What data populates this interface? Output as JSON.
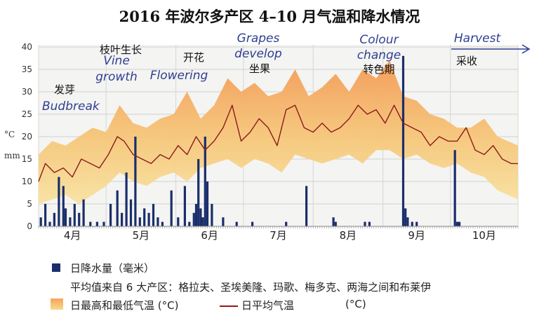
{
  "chart_data": {
    "type": "line",
    "title": "2016 年波尔多产区 4–10 月气温和降水情况",
    "y_label_temp": "°C",
    "y_label_rain": "mm",
    "ylim": [
      0,
      40
    ],
    "y_ticks": [
      0,
      5,
      10,
      15,
      20,
      25,
      30,
      35,
      40
    ],
    "x_range": [
      "2016-04-01",
      "2016-10-31"
    ],
    "months": [
      "4月",
      "5月",
      "6月",
      "7月",
      "8月",
      "9月",
      "10月"
    ],
    "grid": true,
    "stages": [
      {
        "zh": "发芽",
        "en": "Budbreak",
        "date": "2016-04-08"
      },
      {
        "zh": "枝叶生长",
        "en": "Vine growth",
        "date": "2016-04-28"
      },
      {
        "zh": "开花",
        "en": "Flowering",
        "date": "2016-05-28"
      },
      {
        "zh": "坐果",
        "en": "Grapes develop",
        "date": "2016-06-22"
      },
      {
        "zh": "转色期",
        "en": "Colour change",
        "date": "2016-08-10"
      },
      {
        "zh": "采收",
        "en": "Harvest",
        "date": "2016-09-20"
      }
    ],
    "series": [
      {
        "name": "日平均气温",
        "color": "#8b1c1c",
        "x": [
          "2016-04-01",
          "2016-04-04",
          "2016-04-08",
          "2016-04-12",
          "2016-04-16",
          "2016-04-20",
          "2016-04-24",
          "2016-04-28",
          "2016-05-02",
          "2016-05-06",
          "2016-05-09",
          "2016-05-13",
          "2016-05-17",
          "2016-05-21",
          "2016-05-25",
          "2016-05-29",
          "2016-06-02",
          "2016-06-06",
          "2016-06-10",
          "2016-06-14",
          "2016-06-18",
          "2016-06-22",
          "2016-06-26",
          "2016-06-30",
          "2016-07-04",
          "2016-07-08",
          "2016-07-12",
          "2016-07-16",
          "2016-07-20",
          "2016-07-24",
          "2016-07-28",
          "2016-08-01",
          "2016-08-05",
          "2016-08-09",
          "2016-08-13",
          "2016-08-17",
          "2016-08-21",
          "2016-08-25",
          "2016-08-29",
          "2016-09-02",
          "2016-09-06",
          "2016-09-10",
          "2016-09-14",
          "2016-09-18",
          "2016-09-22",
          "2016-09-26",
          "2016-09-30",
          "2016-10-04",
          "2016-10-08",
          "2016-10-12",
          "2016-10-16",
          "2016-10-20",
          "2016-10-24",
          "2016-10-28",
          "2016-10-31"
        ],
        "values": [
          10,
          14,
          12,
          13,
          11,
          15,
          14,
          13,
          16,
          20,
          19,
          16,
          15,
          14,
          16,
          15,
          18,
          16,
          20,
          17,
          19,
          22,
          27,
          19,
          21,
          24,
          22,
          18,
          26,
          27,
          22,
          21,
          23,
          21,
          22,
          24,
          27,
          25,
          26,
          23,
          27,
          23,
          22,
          21,
          18,
          20,
          19,
          19,
          22,
          17,
          16,
          18,
          15,
          14,
          14
        ]
      }
    ],
    "temp_band": {
      "name": "日最高和最低气温",
      "x": [
        "2016-04-01",
        "2016-04-07",
        "2016-04-13",
        "2016-04-19",
        "2016-04-25",
        "2016-05-01",
        "2016-05-07",
        "2016-05-13",
        "2016-05-19",
        "2016-05-25",
        "2016-05-31",
        "2016-06-06",
        "2016-06-12",
        "2016-06-18",
        "2016-06-24",
        "2016-06-30",
        "2016-07-06",
        "2016-07-12",
        "2016-07-18",
        "2016-07-24",
        "2016-07-30",
        "2016-08-05",
        "2016-08-11",
        "2016-08-17",
        "2016-08-23",
        "2016-08-29",
        "2016-09-04",
        "2016-09-10",
        "2016-09-16",
        "2016-09-22",
        "2016-09-28",
        "2016-10-04",
        "2016-10-10",
        "2016-10-16",
        "2016-10-22",
        "2016-10-31"
      ],
      "high": [
        16,
        19,
        18,
        20,
        22,
        21,
        27,
        23,
        22,
        24,
        25,
        30,
        24,
        27,
        33,
        30,
        32,
        29,
        30,
        35,
        29,
        31,
        34,
        30,
        35,
        33,
        37,
        29,
        28,
        25,
        24,
        22,
        22,
        24,
        20,
        18
      ],
      "low": [
        5,
        6,
        7,
        5,
        7,
        9,
        12,
        10,
        9,
        11,
        12,
        10,
        13,
        14,
        15,
        13,
        15,
        14,
        12,
        16,
        15,
        14,
        15,
        16,
        14,
        17,
        17,
        15,
        16,
        14,
        13,
        14,
        12,
        11,
        8,
        6
      ]
    },
    "rain": {
      "name": "日降水量（毫米）",
      "color": "#1a2e6b",
      "x": [
        "2016-04-02",
        "2016-04-04",
        "2016-04-06",
        "2016-04-08",
        "2016-04-10",
        "2016-04-12",
        "2016-04-13",
        "2016-04-15",
        "2016-04-17",
        "2016-04-19",
        "2016-04-21",
        "2016-04-24",
        "2016-04-27",
        "2016-04-30",
        "2016-05-03",
        "2016-05-06",
        "2016-05-08",
        "2016-05-10",
        "2016-05-12",
        "2016-05-14",
        "2016-05-16",
        "2016-05-18",
        "2016-05-20",
        "2016-05-22",
        "2016-05-24",
        "2016-05-26",
        "2016-05-30",
        "2016-06-02",
        "2016-06-05",
        "2016-06-07",
        "2016-06-09",
        "2016-06-10",
        "2016-06-11",
        "2016-06-12",
        "2016-06-13",
        "2016-06-14",
        "2016-06-15",
        "2016-06-17",
        "2016-06-22",
        "2016-06-28",
        "2016-07-05",
        "2016-07-20",
        "2016-07-29",
        "2016-08-10",
        "2016-08-11",
        "2016-08-24",
        "2016-08-26",
        "2016-09-10",
        "2016-09-11",
        "2016-09-12",
        "2016-09-14",
        "2016-09-16",
        "2016-10-03",
        "2016-10-04",
        "2016-10-05"
      ],
      "values": [
        2,
        5,
        1,
        3,
        11,
        9,
        4,
        2,
        5,
        3,
        6,
        1,
        1,
        1,
        5,
        8,
        3,
        12,
        6,
        20,
        2,
        4,
        3,
        5,
        2,
        1,
        8,
        2,
        9,
        1,
        3,
        5,
        15,
        4,
        2,
        20,
        10,
        5,
        2,
        1,
        1,
        1,
        9,
        2,
        1,
        1,
        1,
        38,
        4,
        2,
        1,
        1,
        17,
        1,
        1
      ]
    },
    "legend": {
      "rain_label": "日降水量（毫米）",
      "source_note": "平均值来自 6 大产区：格拉夫、圣埃美隆、玛歌、梅多克、两海之间和布莱伊",
      "band_label": "日最高和最低气温 (°C)",
      "line_label": "日平均气温",
      "line_unit": "(°C)"
    }
  }
}
